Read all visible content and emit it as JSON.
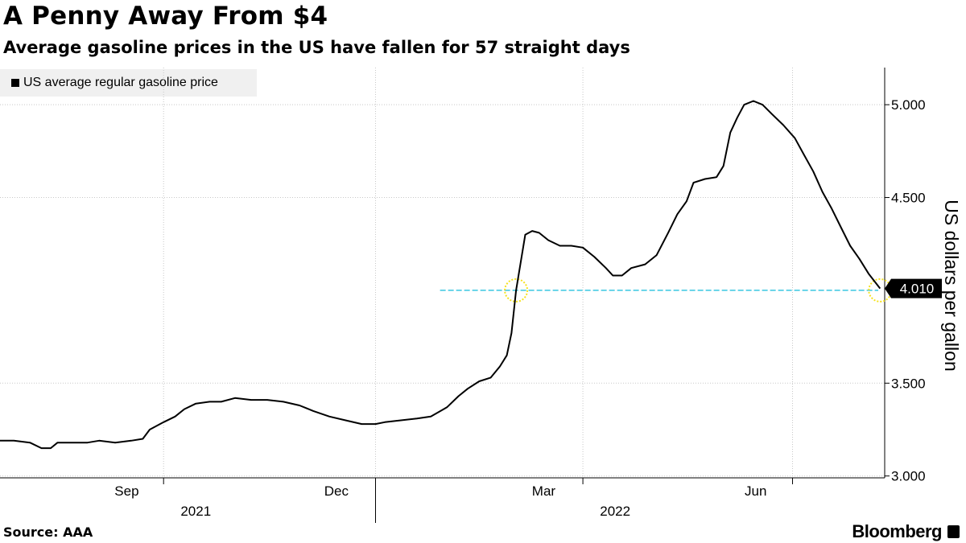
{
  "title": "A Penny Away From $4",
  "subtitle": "Average gasoline prices in the US have fallen for 57 straight days",
  "source": "Source: AAA",
  "brand": "Bloomberg",
  "colors": {
    "line": "#000000",
    "reference_line": "#39c6e0",
    "highlight": "#f5e21d",
    "grid": "#c8c8c8"
  },
  "chart_data": {
    "type": "line",
    "title": "A Penny Away From $4",
    "subtitle": "Average gasoline prices in the US have fallen for 57 straight days",
    "ylabel": "US dollars per gallon",
    "xlabel": "",
    "legend": {
      "entries": [
        "US average regular gasoline price"
      ],
      "placement": "top-left"
    },
    "ylim": [
      2.99,
      5.2
    ],
    "yticks": [
      3.0,
      3.5,
      4.5,
      5.0
    ],
    "ytick_labels": [
      "3.000",
      "3.500",
      "4.500",
      "5.000"
    ],
    "x_domain": [
      "2021-07-22",
      "2022-08-10"
    ],
    "x_month_ticks": [
      "Sep",
      "Dec",
      "Mar",
      "Jun"
    ],
    "x_year_labels": [
      "2021",
      "2022"
    ],
    "last_value": 4.01,
    "last_value_label": "4.010",
    "reference_line": {
      "value": 4.0,
      "label": ""
    },
    "highlights": [
      {
        "date": "2022-03-03",
        "value": 4.0
      },
      {
        "date": "2022-08-08",
        "value": 4.0
      }
    ],
    "series": [
      {
        "name": "US average regular gasoline price",
        "points": [
          [
            "2021-07-22",
            3.19
          ],
          [
            "2021-07-28",
            3.19
          ],
          [
            "2021-08-04",
            3.18
          ],
          [
            "2021-08-09",
            3.15
          ],
          [
            "2021-08-13",
            3.15
          ],
          [
            "2021-08-16",
            3.18
          ],
          [
            "2021-08-23",
            3.18
          ],
          [
            "2021-08-29",
            3.18
          ],
          [
            "2021-09-03",
            3.19
          ],
          [
            "2021-09-10",
            3.18
          ],
          [
            "2021-09-17",
            3.19
          ],
          [
            "2021-09-22",
            3.2
          ],
          [
            "2021-09-25",
            3.25
          ],
          [
            "2021-10-01",
            3.29
          ],
          [
            "2021-10-06",
            3.32
          ],
          [
            "2021-10-10",
            3.36
          ],
          [
            "2021-10-15",
            3.39
          ],
          [
            "2021-10-21",
            3.4
          ],
          [
            "2021-10-26",
            3.4
          ],
          [
            "2021-11-01",
            3.42
          ],
          [
            "2021-11-08",
            3.41
          ],
          [
            "2021-11-15",
            3.41
          ],
          [
            "2021-11-22",
            3.4
          ],
          [
            "2021-11-29",
            3.38
          ],
          [
            "2021-12-05",
            3.35
          ],
          [
            "2021-12-12",
            3.32
          ],
          [
            "2021-12-19",
            3.3
          ],
          [
            "2021-12-26",
            3.28
          ],
          [
            "2022-01-01",
            3.28
          ],
          [
            "2022-01-05",
            3.29
          ],
          [
            "2022-01-12",
            3.3
          ],
          [
            "2022-01-19",
            3.31
          ],
          [
            "2022-01-25",
            3.32
          ],
          [
            "2022-02-01",
            3.37
          ],
          [
            "2022-02-06",
            3.43
          ],
          [
            "2022-02-10",
            3.47
          ],
          [
            "2022-02-15",
            3.51
          ],
          [
            "2022-02-20",
            3.53
          ],
          [
            "2022-02-24",
            3.59
          ],
          [
            "2022-02-27",
            3.65
          ],
          [
            "2022-03-01",
            3.77
          ],
          [
            "2022-03-03",
            4.0
          ],
          [
            "2022-03-05",
            4.15
          ],
          [
            "2022-03-07",
            4.3
          ],
          [
            "2022-03-10",
            4.32
          ],
          [
            "2022-03-13",
            4.31
          ],
          [
            "2022-03-17",
            4.27
          ],
          [
            "2022-03-22",
            4.24
          ],
          [
            "2022-03-27",
            4.24
          ],
          [
            "2022-04-01",
            4.23
          ],
          [
            "2022-04-06",
            4.18
          ],
          [
            "2022-04-11",
            4.12
          ],
          [
            "2022-04-14",
            4.08
          ],
          [
            "2022-04-18",
            4.08
          ],
          [
            "2022-04-22",
            4.12
          ],
          [
            "2022-04-28",
            4.14
          ],
          [
            "2022-05-03",
            4.19
          ],
          [
            "2022-05-08",
            4.31
          ],
          [
            "2022-05-12",
            4.41
          ],
          [
            "2022-05-16",
            4.48
          ],
          [
            "2022-05-19",
            4.58
          ],
          [
            "2022-05-24",
            4.6
          ],
          [
            "2022-05-29",
            4.61
          ],
          [
            "2022-06-01",
            4.67
          ],
          [
            "2022-06-04",
            4.85
          ],
          [
            "2022-06-07",
            4.93
          ],
          [
            "2022-06-10",
            5.0
          ],
          [
            "2022-06-14",
            5.02
          ],
          [
            "2022-06-18",
            5.0
          ],
          [
            "2022-06-22",
            4.95
          ],
          [
            "2022-06-27",
            4.89
          ],
          [
            "2022-07-02",
            4.82
          ],
          [
            "2022-07-06",
            4.73
          ],
          [
            "2022-07-10",
            4.64
          ],
          [
            "2022-07-14",
            4.53
          ],
          [
            "2022-07-18",
            4.44
          ],
          [
            "2022-07-22",
            4.34
          ],
          [
            "2022-07-26",
            4.24
          ],
          [
            "2022-07-30",
            4.17
          ],
          [
            "2022-08-03",
            4.09
          ],
          [
            "2022-08-08",
            4.01
          ]
        ]
      }
    ]
  }
}
